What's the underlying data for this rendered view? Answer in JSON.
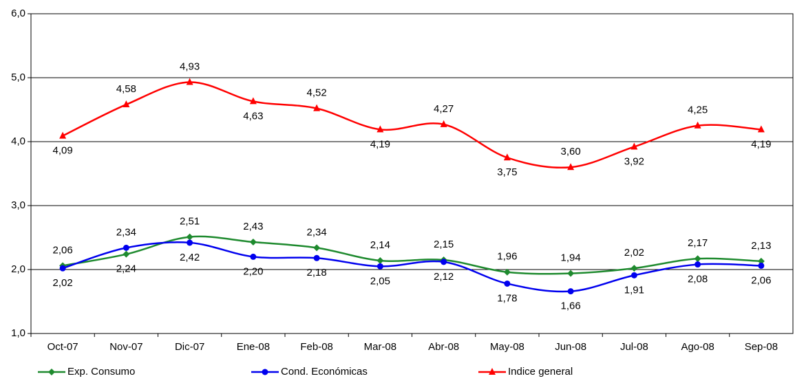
{
  "chart_data": {
    "type": "line",
    "categories": [
      "Oct-07",
      "Nov-07",
      "Dic-07",
      "Ene-08",
      "Feb-08",
      "Mar-08",
      "Abr-08",
      "May-08",
      "Jun-08",
      "Jul-08",
      "Ago-08",
      "Sep-08"
    ],
    "series": [
      {
        "name": "Exp. Consumo",
        "color": "#1e8a2e",
        "values": [
          2.06,
          2.24,
          2.51,
          2.43,
          2.34,
          2.14,
          2.15,
          1.96,
          1.94,
          2.02,
          2.17,
          2.13
        ],
        "value_labels": [
          "2,06",
          "2,24",
          "2,51",
          "2,43",
          "2,34",
          "2,14",
          "2,15",
          "1,96",
          "1,94",
          "2,02",
          "2,17",
          "2,13"
        ]
      },
      {
        "name": "Cond. Económicas",
        "color": "#0000ee",
        "values": [
          2.02,
          2.34,
          2.42,
          2.2,
          2.18,
          2.05,
          2.12,
          1.78,
          1.66,
          1.91,
          2.08,
          2.06
        ],
        "value_labels": [
          "2,02",
          "2,34",
          "2,42",
          "2,20",
          "2,18",
          "2,05",
          "2,12",
          "1,78",
          "1,66",
          "1,91",
          "2,08",
          "2,06"
        ]
      },
      {
        "name": "Indice general",
        "color": "#ff0000",
        "values": [
          4.09,
          4.58,
          4.93,
          4.63,
          4.52,
          4.19,
          4.27,
          3.75,
          3.6,
          3.92,
          4.25,
          4.19
        ],
        "value_labels": [
          "4,09",
          "4,58",
          "4,93",
          "4,63",
          "4,52",
          "4,19",
          "4,27",
          "3,75",
          "3,60",
          "3,92",
          "4,25",
          "4,19"
        ]
      }
    ],
    "ylim": [
      1,
      6
    ],
    "yticks": [
      {
        "value": 1,
        "label": "1,0"
      },
      {
        "value": 2,
        "label": "2,0"
      },
      {
        "value": 3,
        "label": "3,0"
      },
      {
        "value": 4,
        "label": "4,0"
      },
      {
        "value": 5,
        "label": "5,0"
      },
      {
        "value": 6,
        "label": "6,0"
      }
    ],
    "grid": true,
    "legend": "bottom"
  }
}
